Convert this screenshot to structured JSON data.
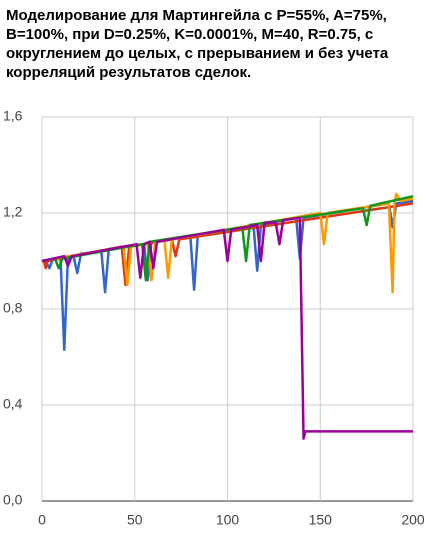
{
  "chart_data": {
    "type": "line",
    "title": "Моделирование для Мартингейла с P=55%, A=75%, B=100%, при D=0.25%, K=0.0001%, M=40, R=0.75, с округлением до целых, с прерыванием и без учета корреляций результатов сделок.",
    "xlim": [
      0,
      200
    ],
    "xticks": [
      0,
      50,
      100,
      150,
      200
    ],
    "ylim": [
      0,
      1.6
    ],
    "yticks": [
      {
        "value": 0,
        "label": "0,0"
      },
      {
        "value": 0.4,
        "label": "0,4"
      },
      {
        "value": 0.8,
        "label": "0,8"
      },
      {
        "value": 1.2,
        "label": "1,2"
      },
      {
        "value": 1.6,
        "label": "1,6"
      }
    ],
    "grid": true,
    "series": [
      {
        "color": "#3366cc",
        "x": [
          0,
          2,
          4,
          6,
          10,
          12,
          14,
          17,
          19,
          21,
          32,
          34,
          36,
          55,
          57,
          59,
          80,
          82,
          84,
          114,
          116,
          118,
          137,
          139,
          141,
          187,
          189,
          191,
          200
        ],
        "values": [
          1.0,
          1.0,
          0.97,
          1.01,
          1.01,
          0.63,
          1.02,
          1.02,
          0.95,
          1.03,
          1.04,
          0.87,
          1.05,
          1.07,
          0.92,
          1.08,
          1.1,
          0.88,
          1.11,
          1.15,
          0.96,
          1.15,
          1.18,
          1.01,
          1.18,
          1.24,
          1.14,
          1.24,
          1.25
        ]
      },
      {
        "color": "#dc3912",
        "x": [
          0,
          1,
          2,
          3,
          43,
          45,
          47,
          70,
          72,
          74,
          200
        ],
        "values": [
          1.0,
          1.0,
          0.97,
          1.0,
          1.06,
          0.9,
          1.06,
          1.09,
          1.02,
          1.09,
          1.24
        ]
      },
      {
        "color": "#ff9900",
        "x": [
          0,
          44,
          46,
          48,
          57,
          59,
          61,
          66,
          68,
          70,
          150,
          152,
          154,
          187,
          189,
          190,
          191,
          193,
          200
        ],
        "values": [
          1.0,
          1.06,
          0.9,
          1.06,
          1.07,
          0.92,
          1.08,
          1.09,
          0.93,
          1.09,
          1.2,
          1.07,
          1.2,
          1.24,
          0.87,
          1.24,
          1.28,
          1.25,
          1.26
        ]
      },
      {
        "color": "#109618",
        "x": [
          0,
          7,
          9,
          11,
          54,
          56,
          58,
          108,
          110,
          112,
          173,
          175,
          177,
          200
        ],
        "values": [
          1.0,
          1.01,
          0.97,
          1.01,
          1.07,
          0.92,
          1.08,
          1.14,
          1.0,
          1.15,
          1.22,
          1.15,
          1.23,
          1.27
        ]
      },
      {
        "color": "#990099",
        "x": [
          0,
          12,
          14,
          16,
          51,
          53,
          55,
          58,
          60,
          62,
          98,
          100,
          102,
          116,
          118,
          120,
          126,
          128,
          130,
          139,
          141,
          142,
          200
        ],
        "values": [
          1.0,
          1.02,
          0.98,
          1.02,
          1.07,
          0.93,
          1.07,
          1.08,
          0.97,
          1.08,
          1.13,
          1.0,
          1.13,
          1.15,
          1.0,
          1.16,
          1.16,
          1.07,
          1.17,
          1.18,
          0.26,
          0.29,
          0.29
        ]
      }
    ]
  }
}
